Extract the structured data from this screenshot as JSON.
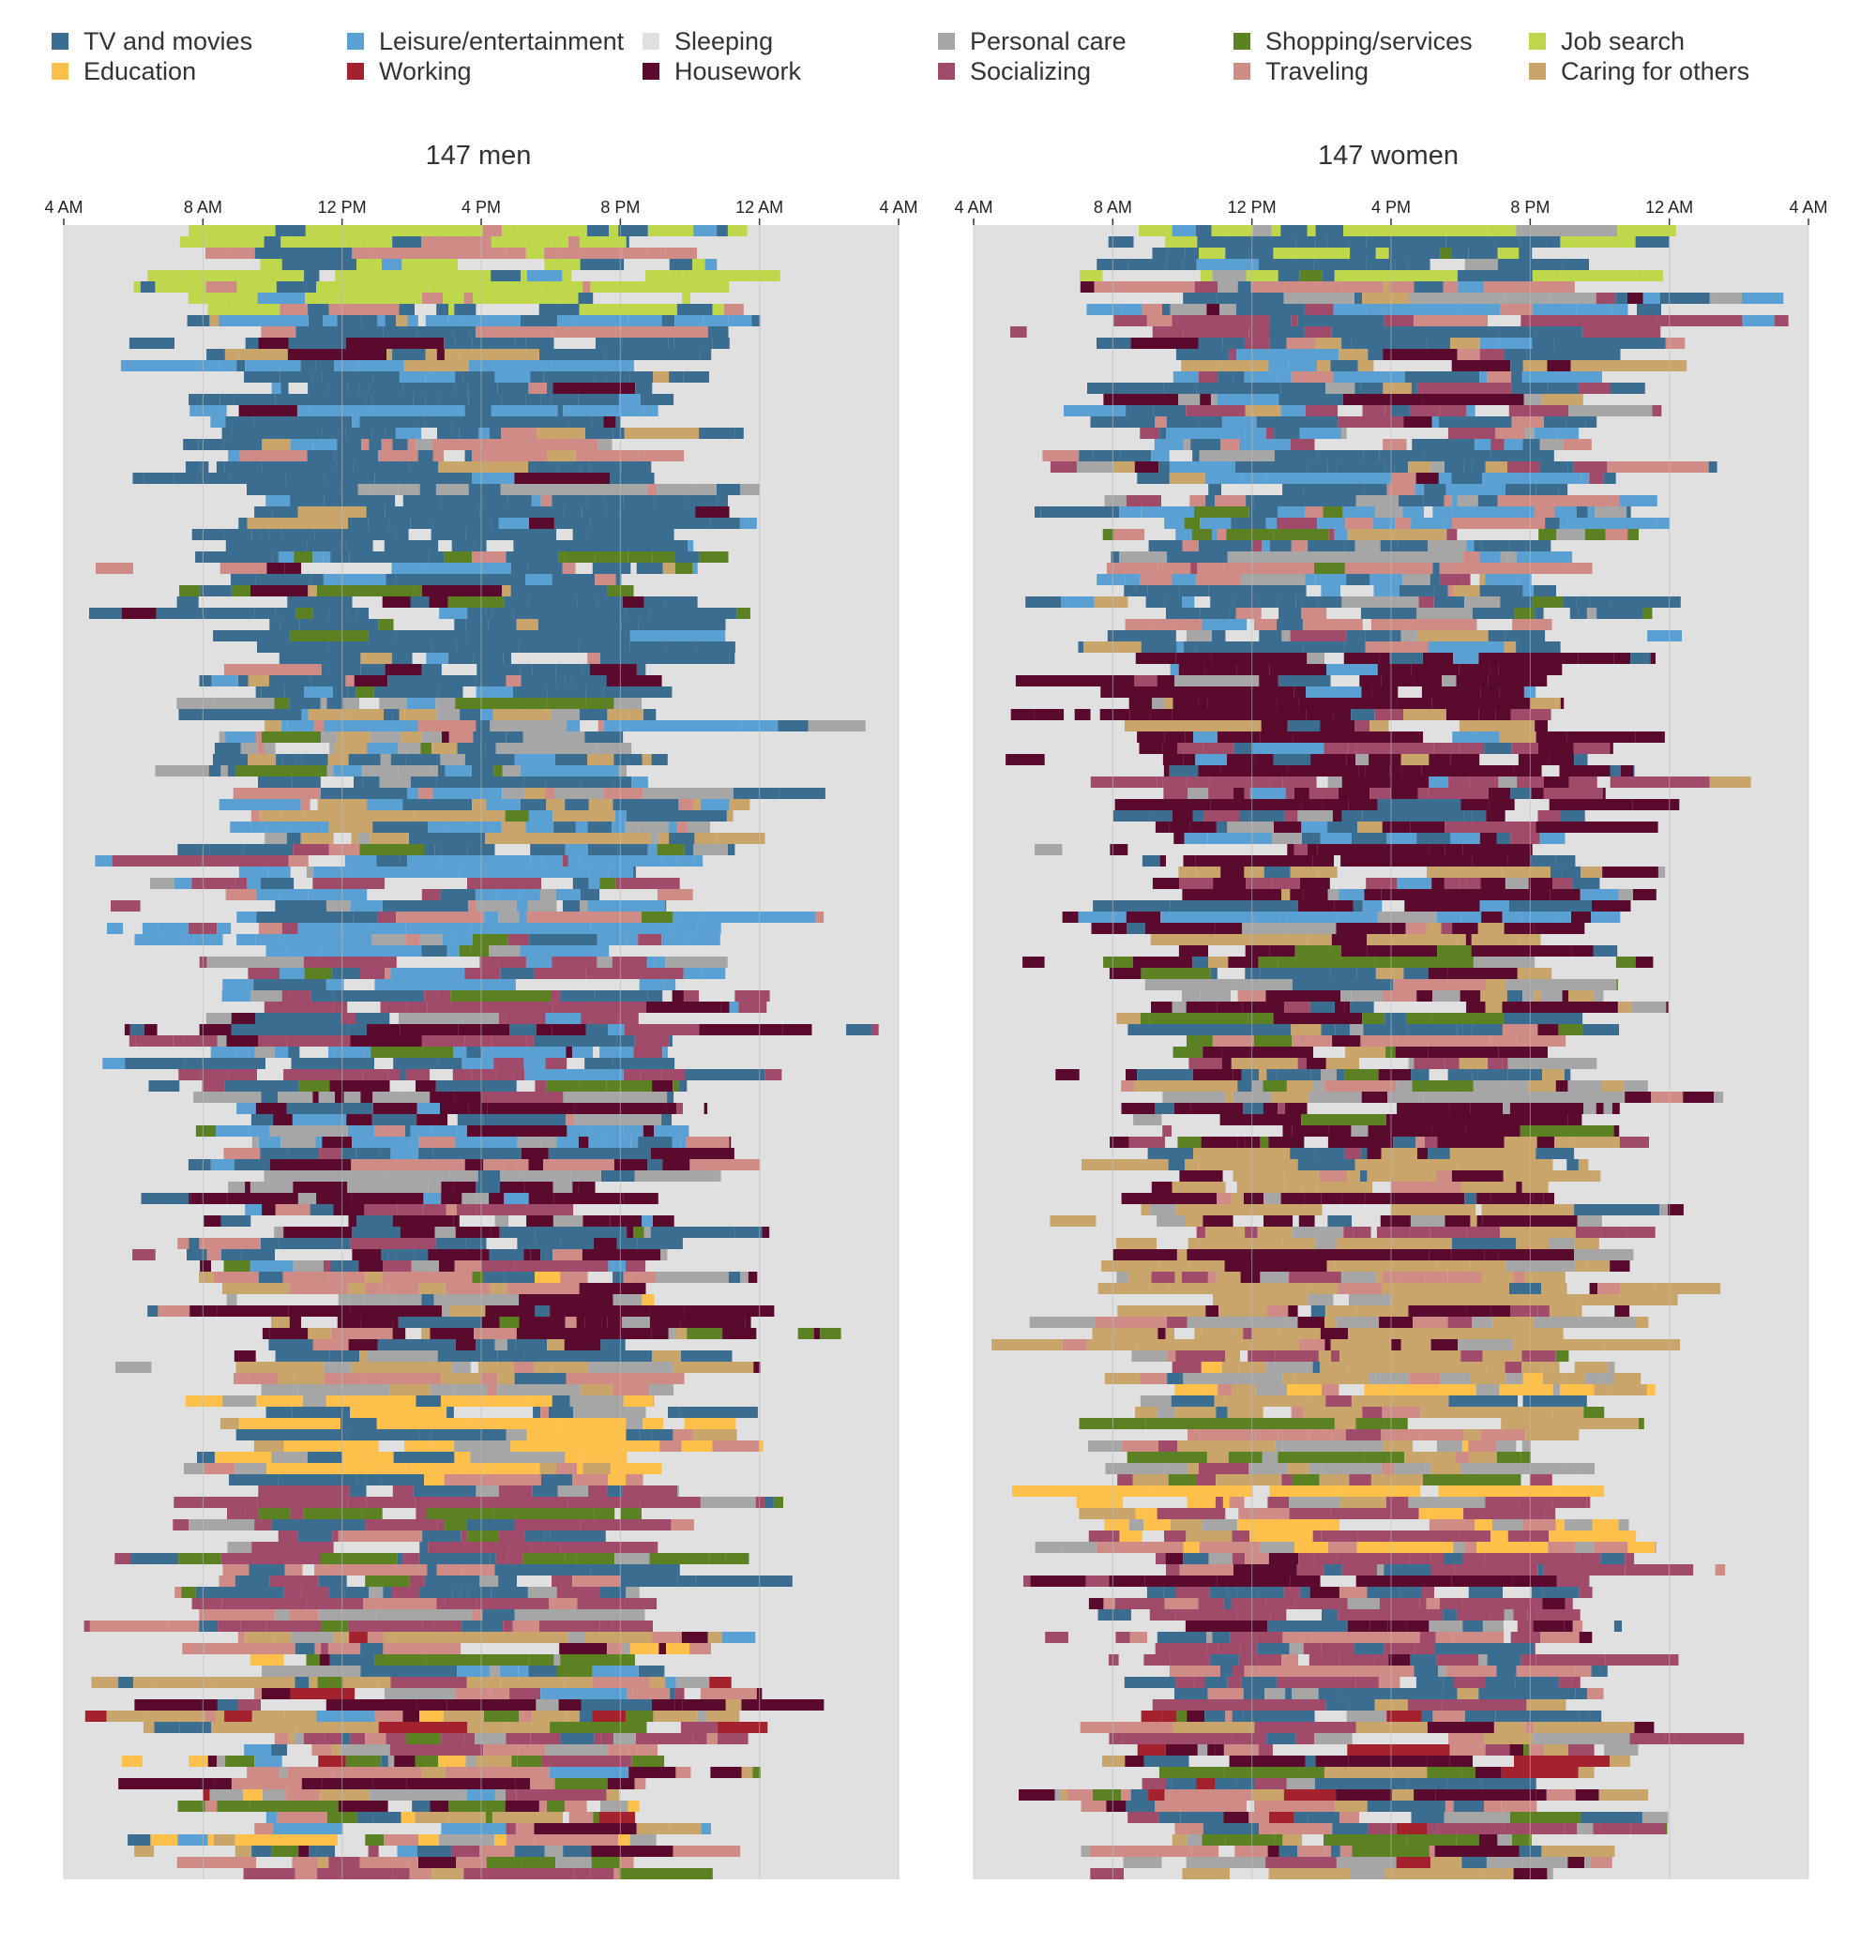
{
  "legend": [
    {
      "key": "tv",
      "label": "TV and movies",
      "color": "#3b6d91"
    },
    {
      "key": "education",
      "label": "Education",
      "color": "#fdc04a"
    },
    {
      "key": "leisure",
      "label": "Leisure/entertainment",
      "color": "#5aa0d3"
    },
    {
      "key": "working",
      "label": "Working",
      "color": "#a3222d"
    },
    {
      "key": "sleeping",
      "label": "Sleeping",
      "color": "#e0e0e0"
    },
    {
      "key": "housework",
      "label": "Housework",
      "color": "#5a0a2d"
    },
    {
      "key": "personal",
      "label": "Personal care",
      "color": "#a6a6a6"
    },
    {
      "key": "socializing",
      "label": "Socializing",
      "color": "#a14b6b"
    },
    {
      "key": "shopping",
      "label": "Shopping/services",
      "color": "#5b8122"
    },
    {
      "key": "traveling",
      "label": "Traveling",
      "color": "#cf8c87"
    },
    {
      "key": "jobsearch",
      "label": "Job search",
      "color": "#bfd84b"
    },
    {
      "key": "caring",
      "label": "Caring for others",
      "color": "#c9a46b"
    }
  ],
  "chart_data": {
    "type": "timeline-heatmap",
    "x_axis": {
      "ticks": [
        "4 AM",
        "8 AM",
        "12 PM",
        "4 PM",
        "8 PM",
        "12 AM",
        "4 AM"
      ],
      "range_hours": [
        4,
        28
      ]
    },
    "panels": [
      {
        "title": "147 men",
        "rows": 147,
        "segments": [
          {
            "from": 0,
            "to": 8,
            "weights": {
              "jobsearch": 6,
              "tv": 3,
              "leisure": 1,
              "traveling": 1
            }
          },
          {
            "from": 8,
            "to": 28,
            "weights": {
              "tv": 9,
              "leisure": 2,
              "personal": 1,
              "traveling": 1,
              "housework": 1,
              "caring": 1
            }
          },
          {
            "from": 28,
            "to": 42,
            "weights": {
              "tv": 7,
              "leisure": 2,
              "housework": 1,
              "shopping": 1,
              "caring": 1,
              "traveling": 1
            }
          },
          {
            "from": 42,
            "to": 55,
            "weights": {
              "tv": 5,
              "traveling": 2,
              "personal": 2,
              "caring": 2,
              "leisure": 2,
              "shopping": 1,
              "housework": 1
            }
          },
          {
            "from": 55,
            "to": 68,
            "weights": {
              "leisure": 6,
              "tv": 3,
              "traveling": 1,
              "personal": 1,
              "socializing": 1,
              "shopping": 1
            }
          },
          {
            "from": 68,
            "to": 77,
            "weights": {
              "tv": 5,
              "leisure": 3,
              "housework": 2,
              "socializing": 2,
              "shopping": 1,
              "personal": 1
            }
          },
          {
            "from": 77,
            "to": 93,
            "weights": {
              "housework": 5,
              "tv": 3,
              "leisure": 1,
              "personal": 2,
              "shopping": 1,
              "socializing": 1,
              "traveling": 1
            }
          },
          {
            "from": 93,
            "to": 104,
            "weights": {
              "caring": 4,
              "housework": 2,
              "tv": 2,
              "traveling": 2,
              "personal": 2,
              "shopping": 1,
              "education": 1
            }
          },
          {
            "from": 104,
            "to": 112,
            "weights": {
              "education": 7,
              "tv": 2,
              "personal": 2,
              "traveling": 1,
              "caring": 1
            }
          },
          {
            "from": 112,
            "to": 125,
            "weights": {
              "socializing": 5,
              "tv": 3,
              "traveling": 2,
              "personal": 2,
              "shopping": 1
            }
          },
          {
            "from": 125,
            "to": 147,
            "weights": {
              "traveling": 3,
              "personal": 3,
              "shopping": 2,
              "housework": 2,
              "tv": 2,
              "socializing": 2,
              "caring": 2,
              "working": 1,
              "leisure": 1,
              "education": 1
            }
          }
        ]
      },
      {
        "title": "147 women",
        "rows": 147,
        "segments": [
          {
            "from": 0,
            "to": 5,
            "weights": {
              "tv": 6,
              "leisure": 2,
              "jobsearch": 3,
              "shopping": 1,
              "personal": 1
            }
          },
          {
            "from": 5,
            "to": 25,
            "weights": {
              "tv": 6,
              "leisure": 3,
              "socializing": 2,
              "traveling": 2,
              "personal": 2,
              "housework": 1,
              "caring": 1
            }
          },
          {
            "from": 25,
            "to": 38,
            "weights": {
              "tv": 4,
              "leisure": 3,
              "socializing": 2,
              "traveling": 2,
              "personal": 2,
              "caring": 1,
              "shopping": 1
            }
          },
          {
            "from": 38,
            "to": 62,
            "weights": {
              "housework": 8,
              "tv": 2,
              "personal": 1,
              "caring": 1,
              "socializing": 1,
              "leisure": 1
            }
          },
          {
            "from": 62,
            "to": 82,
            "weights": {
              "housework": 4,
              "caring": 3,
              "tv": 2,
              "personal": 2,
              "socializing": 1,
              "shopping": 1,
              "traveling": 1
            }
          },
          {
            "from": 82,
            "to": 100,
            "weights": {
              "caring": 6,
              "housework": 3,
              "tv": 1,
              "personal": 2,
              "socializing": 1,
              "traveling": 1
            }
          },
          {
            "from": 100,
            "to": 112,
            "weights": {
              "caring": 5,
              "traveling": 2,
              "personal": 2,
              "tv": 1,
              "socializing": 1,
              "shopping": 1,
              "education": 1
            }
          },
          {
            "from": 112,
            "to": 118,
            "weights": {
              "education": 6,
              "caring": 2,
              "personal": 2,
              "traveling": 1,
              "socializing": 1
            }
          },
          {
            "from": 118,
            "to": 130,
            "weights": {
              "socializing": 5,
              "tv": 3,
              "traveling": 2,
              "personal": 2,
              "housework": 1
            }
          },
          {
            "from": 130,
            "to": 147,
            "weights": {
              "caring": 3,
              "traveling": 3,
              "personal": 3,
              "socializing": 2,
              "tv": 2,
              "housework": 2,
              "shopping": 1,
              "working": 1
            }
          }
        ]
      }
    ]
  }
}
